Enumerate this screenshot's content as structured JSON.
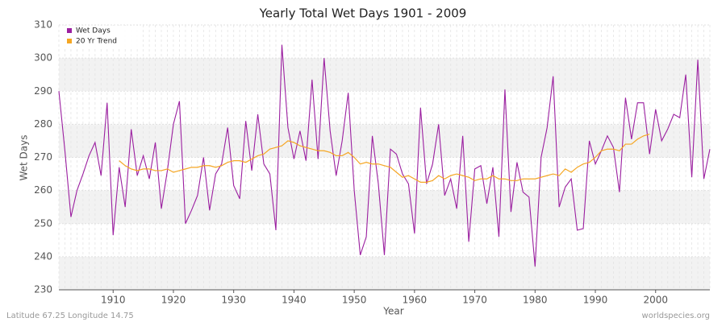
{
  "chart_data": {
    "type": "line",
    "title": "Yearly Total Wet Days 1901 - 2009",
    "x_label": "Year",
    "y_label": "Wet Days",
    "footer_left": "Latitude 67.25 Longitude 14.75",
    "footer_right": "worldspecies.org",
    "x": [
      1901,
      1902,
      1903,
      1904,
      1905,
      1906,
      1907,
      1908,
      1909,
      1910,
      1911,
      1912,
      1913,
      1914,
      1915,
      1916,
      1917,
      1918,
      1919,
      1920,
      1921,
      1922,
      1923,
      1924,
      1925,
      1926,
      1927,
      1928,
      1929,
      1930,
      1931,
      1932,
      1933,
      1934,
      1935,
      1936,
      1937,
      1938,
      1939,
      1940,
      1941,
      1942,
      1943,
      1944,
      1945,
      1946,
      1947,
      1948,
      1949,
      1950,
      1951,
      1952,
      1953,
      1954,
      1955,
      1956,
      1957,
      1958,
      1959,
      1960,
      1961,
      1962,
      1963,
      1964,
      1965,
      1966,
      1967,
      1968,
      1969,
      1970,
      1971,
      1972,
      1973,
      1974,
      1975,
      1976,
      1977,
      1978,
      1979,
      1980,
      1981,
      1982,
      1983,
      1984,
      1985,
      1986,
      1987,
      1988,
      1989,
      1990,
      1991,
      1992,
      1993,
      1994,
      1995,
      1996,
      1997,
      1998,
      1999,
      2000,
      2001,
      2002,
      2003,
      2004,
      2005,
      2006,
      2007,
      2008,
      2009
    ],
    "series": [
      {
        "name": "Wet Days",
        "color": "#9b1fa0",
        "values": [
          290,
          272,
          252,
          260,
          265,
          270.5,
          274.5,
          264.5,
          286.5,
          246.5,
          267,
          255,
          278.5,
          264.5,
          270.5,
          263.5,
          274.5,
          254.5,
          266,
          280,
          287,
          250,
          254,
          258.5,
          270,
          254,
          265,
          268,
          279,
          261.5,
          257.5,
          281,
          266,
          283,
          268,
          265,
          248,
          304,
          279,
          269.5,
          278,
          269,
          293.5,
          269.5,
          300,
          278,
          264.5,
          275,
          289.5,
          260,
          240.5,
          246,
          276.5,
          262,
          240.5,
          272.5,
          271,
          265,
          262,
          247,
          285,
          262,
          268,
          280,
          258.5,
          263.5,
          254.5,
          276.5,
          244.5,
          266.5,
          267.5,
          256,
          267,
          246,
          290.5,
          253.5,
          268.5,
          259.5,
          258,
          237,
          270,
          279,
          294.5,
          255,
          261,
          263.5,
          248,
          248.5,
          275,
          268,
          272,
          276.5,
          273,
          259.5,
          288,
          275.5,
          286.5,
          286.5,
          271,
          284.5,
          275,
          278.5,
          283,
          282,
          295,
          264,
          299.5,
          263.5,
          272.5
        ]
      },
      {
        "name": "20 Yr Trend",
        "color": "#f5a623",
        "values": [
          null,
          null,
          null,
          null,
          null,
          null,
          null,
          null,
          null,
          null,
          269,
          267.5,
          266.5,
          266,
          266.5,
          266.5,
          266,
          266,
          266.5,
          265.5,
          266,
          266.5,
          267,
          267,
          267.5,
          267.5,
          267,
          267.5,
          268.5,
          269,
          269,
          268.5,
          269.5,
          270.5,
          271,
          272.5,
          273,
          273.5,
          275,
          274.5,
          273.5,
          273,
          272.5,
          272,
          272,
          271.5,
          270.5,
          270.5,
          271.5,
          270,
          268,
          268.5,
          268,
          268,
          267.5,
          267,
          265.5,
          264,
          264.5,
          263.5,
          262.5,
          262.5,
          263,
          264.5,
          263.5,
          264.5,
          265,
          264.5,
          264,
          263,
          263.5,
          263.5,
          264.5,
          263.5,
          263.5,
          263,
          263,
          263.5,
          263.5,
          263.5,
          264,
          264.5,
          265,
          264.5,
          266.5,
          265.5,
          267,
          268,
          268.5,
          270,
          272,
          272.5,
          272.5,
          272,
          274,
          274,
          275.5,
          276.5,
          277,
          null,
          null,
          null,
          null,
          null,
          null,
          null,
          null,
          null,
          null
        ]
      }
    ],
    "xlim": [
      1901,
      2009
    ],
    "xticks": [
      1910,
      1920,
      1930,
      1940,
      1950,
      1960,
      1970,
      1980,
      1990,
      2000
    ],
    "ylim": [
      230,
      310
    ],
    "yticks": [
      230,
      240,
      250,
      260,
      270,
      280,
      290,
      300,
      310
    ],
    "grid": true,
    "legend": "top-left"
  }
}
